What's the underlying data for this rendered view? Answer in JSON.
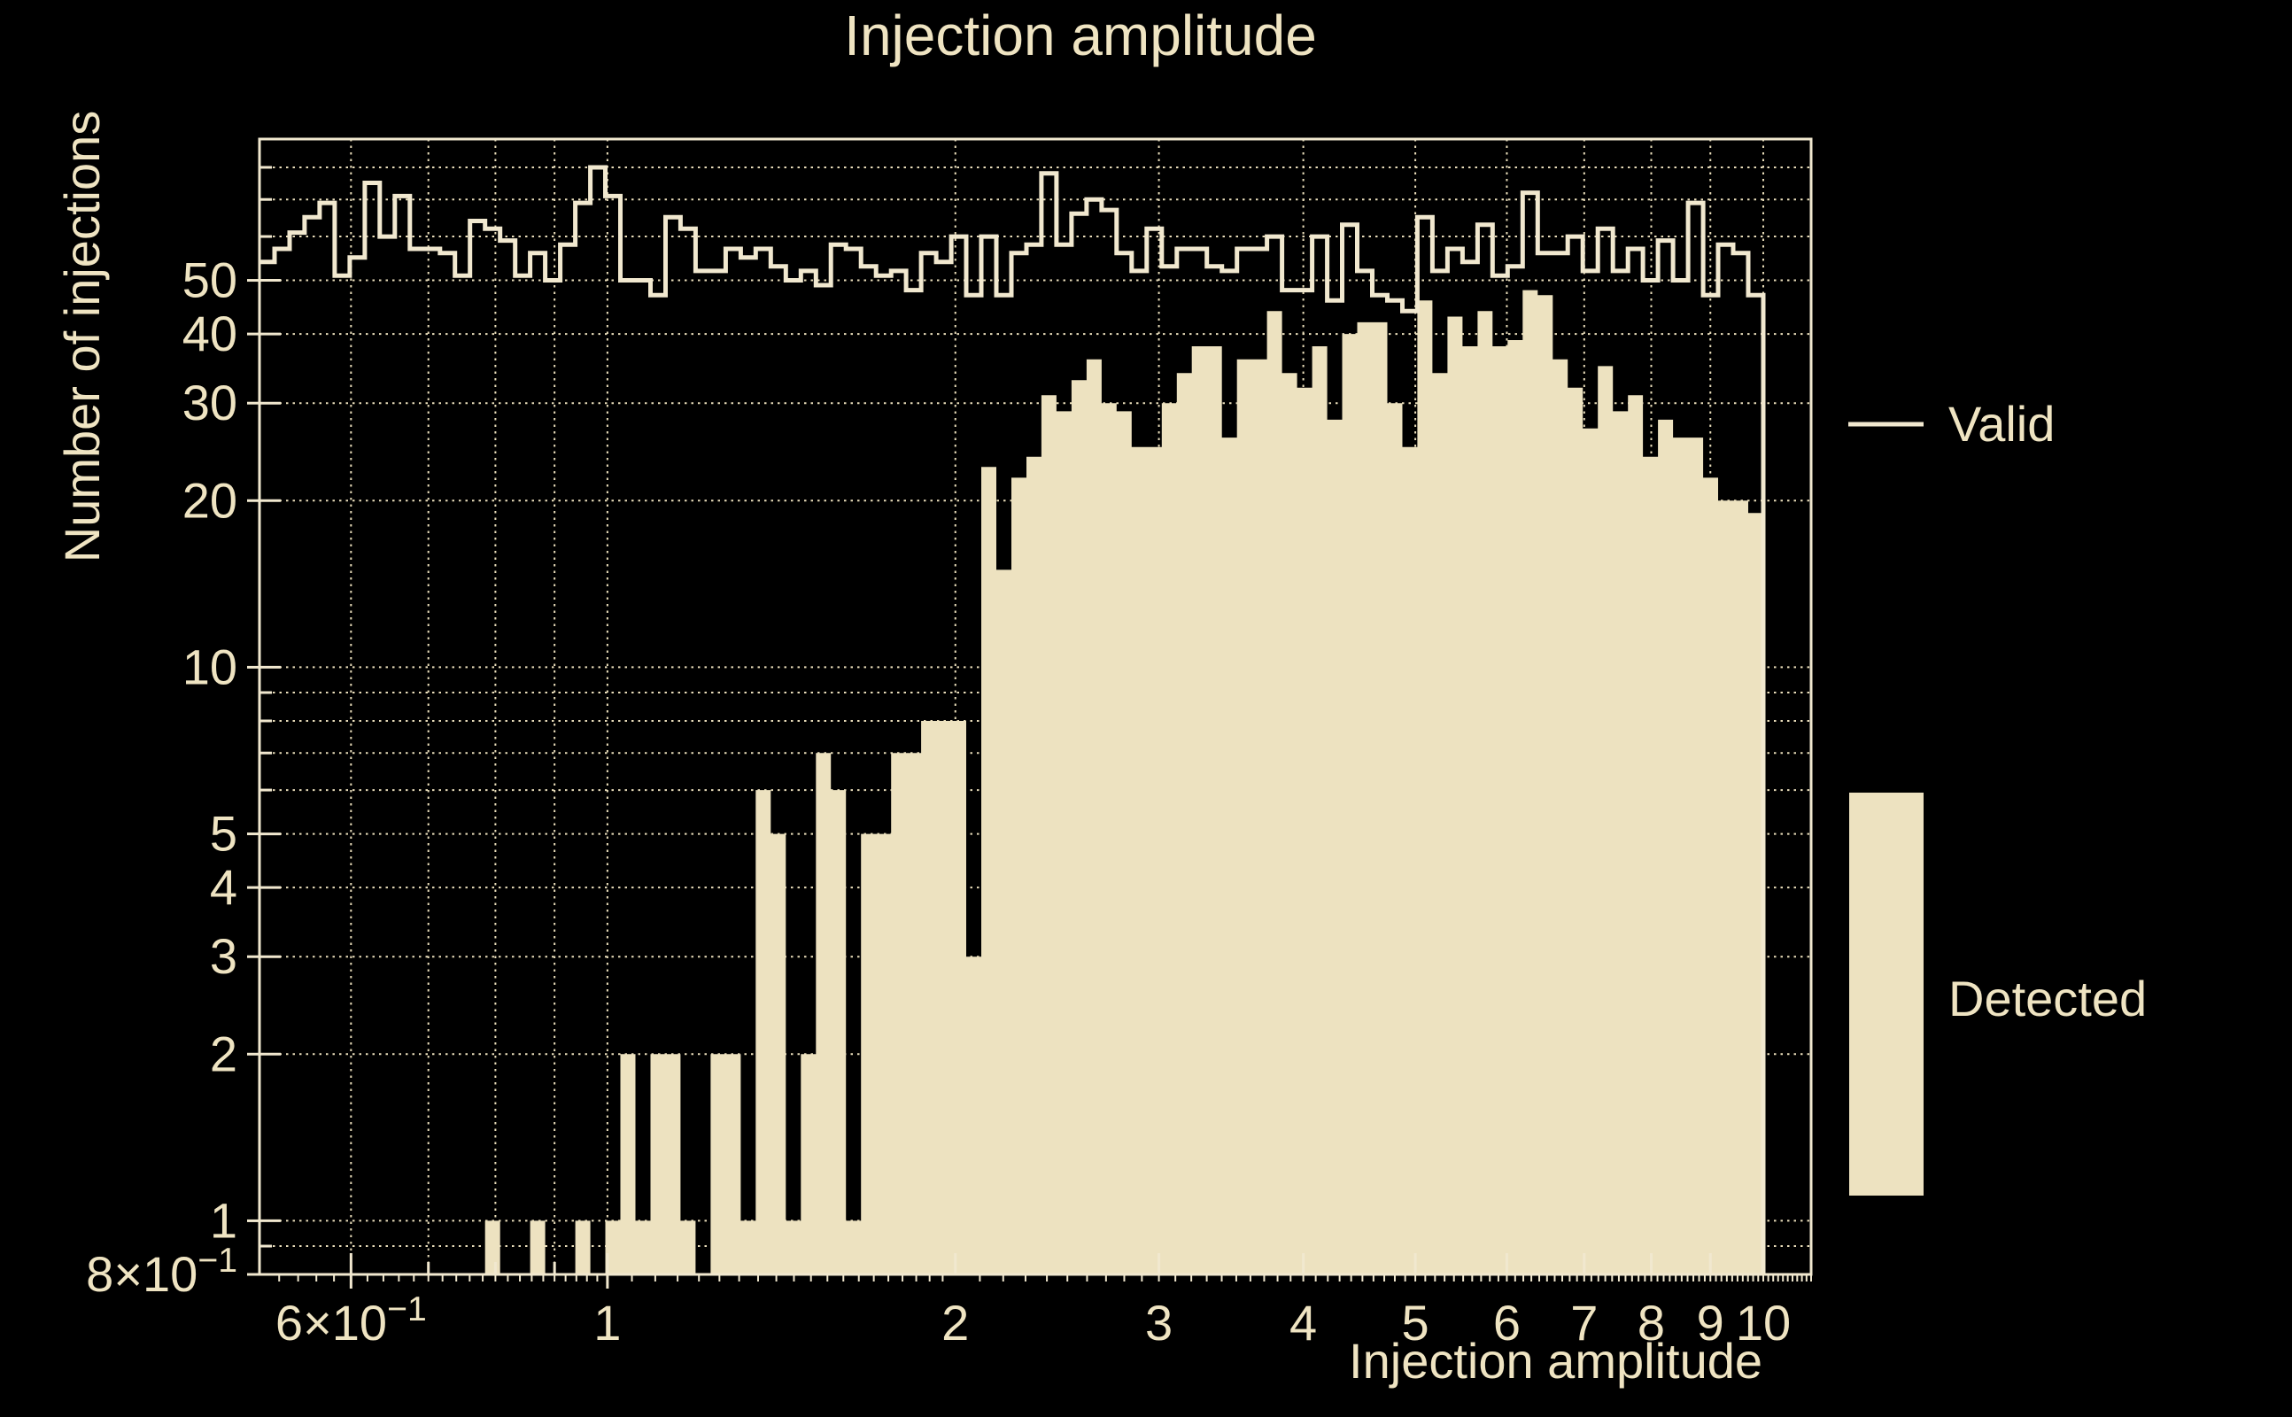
{
  "title": "Injection amplitude",
  "axes": {
    "x_label": "Injection amplitude",
    "y_label": "Number of injections",
    "x_scale": "log",
    "y_scale": "log",
    "x_range": [
      0.5,
      11
    ],
    "y_range": [
      0.8,
      90
    ],
    "x_ticks": [
      {
        "v": 0.6,
        "label": "6×10^-1"
      },
      {
        "v": 1,
        "label": "1"
      },
      {
        "v": 2,
        "label": "2"
      },
      {
        "v": 3,
        "label": "3"
      },
      {
        "v": 4,
        "label": "4"
      },
      {
        "v": 5,
        "label": "5"
      },
      {
        "v": 6,
        "label": "6"
      },
      {
        "v": 7,
        "label": "7"
      },
      {
        "v": 8,
        "label": "8"
      },
      {
        "v": 9,
        "label": "9"
      },
      {
        "v": 10,
        "label": "10"
      }
    ],
    "y_ticks": [
      {
        "v": 0.8,
        "label": "8×10^-1"
      },
      {
        "v": 1,
        "label": "1"
      },
      {
        "v": 2,
        "label": "2"
      },
      {
        "v": 3,
        "label": "3"
      },
      {
        "v": 4,
        "label": "4"
      },
      {
        "v": 5,
        "label": "5"
      },
      {
        "v": 10,
        "label": "10"
      },
      {
        "v": 20,
        "label": "20"
      },
      {
        "v": 30,
        "label": "30"
      },
      {
        "v": 40,
        "label": "40"
      },
      {
        "v": 50,
        "label": "50"
      }
    ],
    "x_gridlines": [
      0.6,
      0.7,
      0.8,
      0.9,
      1,
      2,
      3,
      4,
      5,
      6,
      7,
      8,
      9,
      10
    ],
    "y_gridlines": [
      0.9,
      1,
      2,
      3,
      4,
      5,
      6,
      7,
      8,
      9,
      10,
      20,
      30,
      40,
      50,
      60,
      70,
      80,
      90
    ],
    "grid_style": "dotted"
  },
  "legend": [
    {
      "label": "Valid",
      "swatch": "line"
    },
    {
      "label": "Detected",
      "swatch": "filled-box"
    }
  ],
  "colors": {
    "background": "#000000",
    "fill_cream": "#EDE2C0",
    "line_cream": "#F1E8CF",
    "text_cream": "#EFE4C2",
    "grid_cream": "#E9DDBA"
  },
  "chart_data": {
    "type": "bar",
    "subtype": "log-binned histogram, step outline + filled",
    "title": "Injection amplitude",
    "xlabel": "Injection amplitude",
    "ylabel": "Number of injections",
    "x_scale": "log",
    "y_scale": "log",
    "xlim": [
      0.5,
      11
    ],
    "ylim": [
      0.8,
      90
    ],
    "bin_start": 0.5,
    "bin_end": 10,
    "n_bins": 100,
    "bin_spacing": "log-uniform",
    "legend_position": "right",
    "grid": true,
    "series": [
      {
        "name": "Valid",
        "style": "step-line",
        "values": [
          54,
          57,
          61,
          65,
          69,
          51,
          55,
          75,
          60,
          71,
          57,
          57,
          56,
          51,
          64,
          62,
          59,
          51,
          56,
          50,
          58,
          69,
          80,
          71,
          50,
          50,
          47,
          65,
          62,
          52,
          52,
          57,
          55,
          57,
          53,
          50,
          52,
          49,
          58,
          57,
          53,
          51,
          52,
          48,
          56,
          54,
          60,
          47,
          60,
          47,
          56,
          58,
          78,
          58,
          66,
          70,
          67,
          56,
          52,
          62,
          53,
          57,
          57,
          53,
          52,
          57,
          57,
          60,
          48,
          48,
          60,
          46,
          63,
          52,
          47,
          46,
          44,
          65,
          52,
          57,
          54,
          63,
          51,
          53,
          72,
          56,
          56,
          60,
          52,
          62,
          52,
          57,
          50,
          59,
          50,
          69,
          47,
          58,
          56,
          47
        ]
      },
      {
        "name": "Detected",
        "style": "filled",
        "values": [
          0,
          0,
          0,
          0,
          0,
          0,
          0,
          0,
          0,
          0,
          0,
          0,
          0,
          0,
          0,
          1,
          0,
          0,
          1,
          0,
          0,
          1,
          0,
          1,
          2,
          1,
          2,
          2,
          1,
          0,
          2,
          2,
          1,
          6,
          5,
          1,
          2,
          7,
          6,
          1,
          5,
          5,
          7,
          7,
          8,
          8,
          8,
          3,
          23,
          15,
          22,
          24,
          31,
          29,
          33,
          36,
          30,
          29,
          25,
          25,
          30,
          34,
          38,
          38,
          26,
          36,
          36,
          44,
          34,
          32,
          38,
          28,
          40,
          42,
          42,
          30,
          25,
          46,
          34,
          43,
          38,
          44,
          38,
          39,
          48,
          47,
          36,
          32,
          27,
          35,
          29,
          31,
          24,
          28,
          26,
          26,
          22,
          20,
          20,
          19
        ]
      }
    ]
  }
}
